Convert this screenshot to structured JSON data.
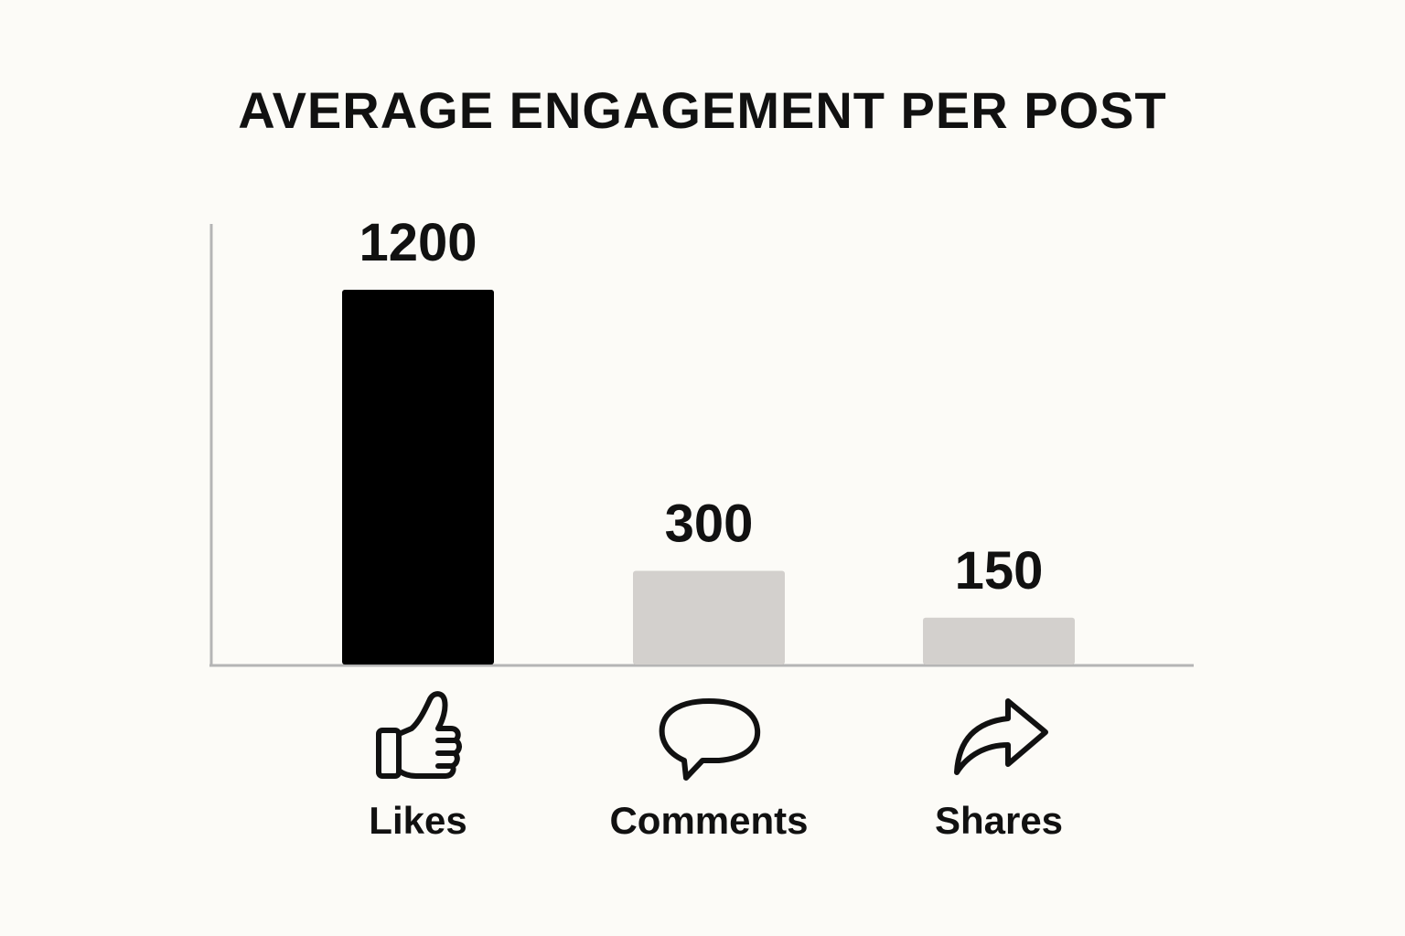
{
  "chart_data": {
    "type": "bar",
    "title": "AVERAGE ENGAGEMENT PER POST",
    "categories": [
      "Likes",
      "Comments",
      "Shares"
    ],
    "values": [
      1200,
      300,
      150
    ],
    "icons": [
      "thumbs-up-icon",
      "speech-bubble-icon",
      "share-arrow-icon"
    ],
    "colors": [
      "#000000",
      "#d3d0cd",
      "#d3d0cd"
    ],
    "xlabel": "",
    "ylabel": "",
    "grid": false,
    "legend": "none"
  }
}
